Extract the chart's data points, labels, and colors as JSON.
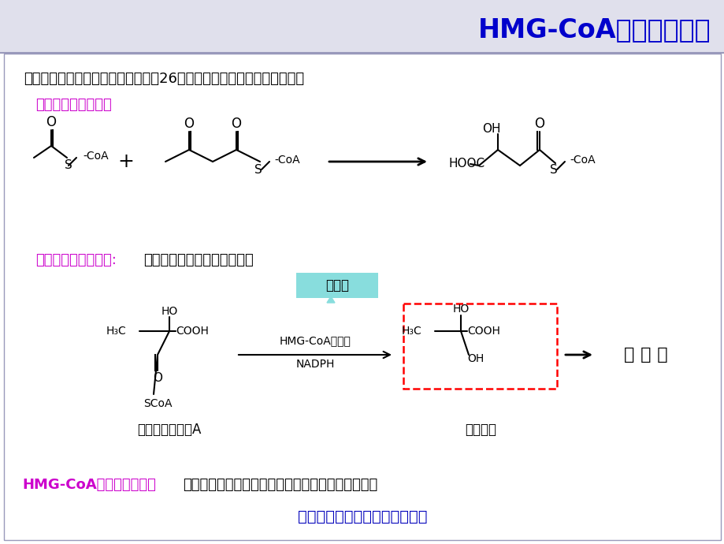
{
  "title": "HMG-CoA还原酶抑制剂",
  "title_color": "#0000CC",
  "bg_color": "#FFFFFF",
  "top_band_color": "#E0E0EC",
  "border_color": "#9999BB",
  "line1": "内源性胆固醇在肝脏合成，由乙酸经26步生物合成步骤在细胞质中完成。",
  "step1_label": "胆固醇合成的第一步",
  "step2_label": "胆固醇合成的第二步:",
  "step2_rest": "内源性胆固醇合成的关键步骤",
  "rate_limiting": "限速酶",
  "hmg_enzyme": "HMG-CoA还原酶",
  "nadph": "NADPH",
  "cholesterol_label": "胆 固 醇",
  "compound1": "羟甲戊二酰辅酶A",
  "compound2": "甲羟戊酸",
  "bottom_bold": "HMG-CoA还原酶抑制剂：",
  "bottom_text1": "可有效降低体内胆固醇水平，用于治疗高胆固醇血症",
  "bottom_text2": "已是临床上一线的降胆固醇药物",
  "magenta": "#CC00CC",
  "blue_bold": "#0000BB",
  "cyan_bg": "#88DDDD",
  "red_dashed": "#FF0000"
}
